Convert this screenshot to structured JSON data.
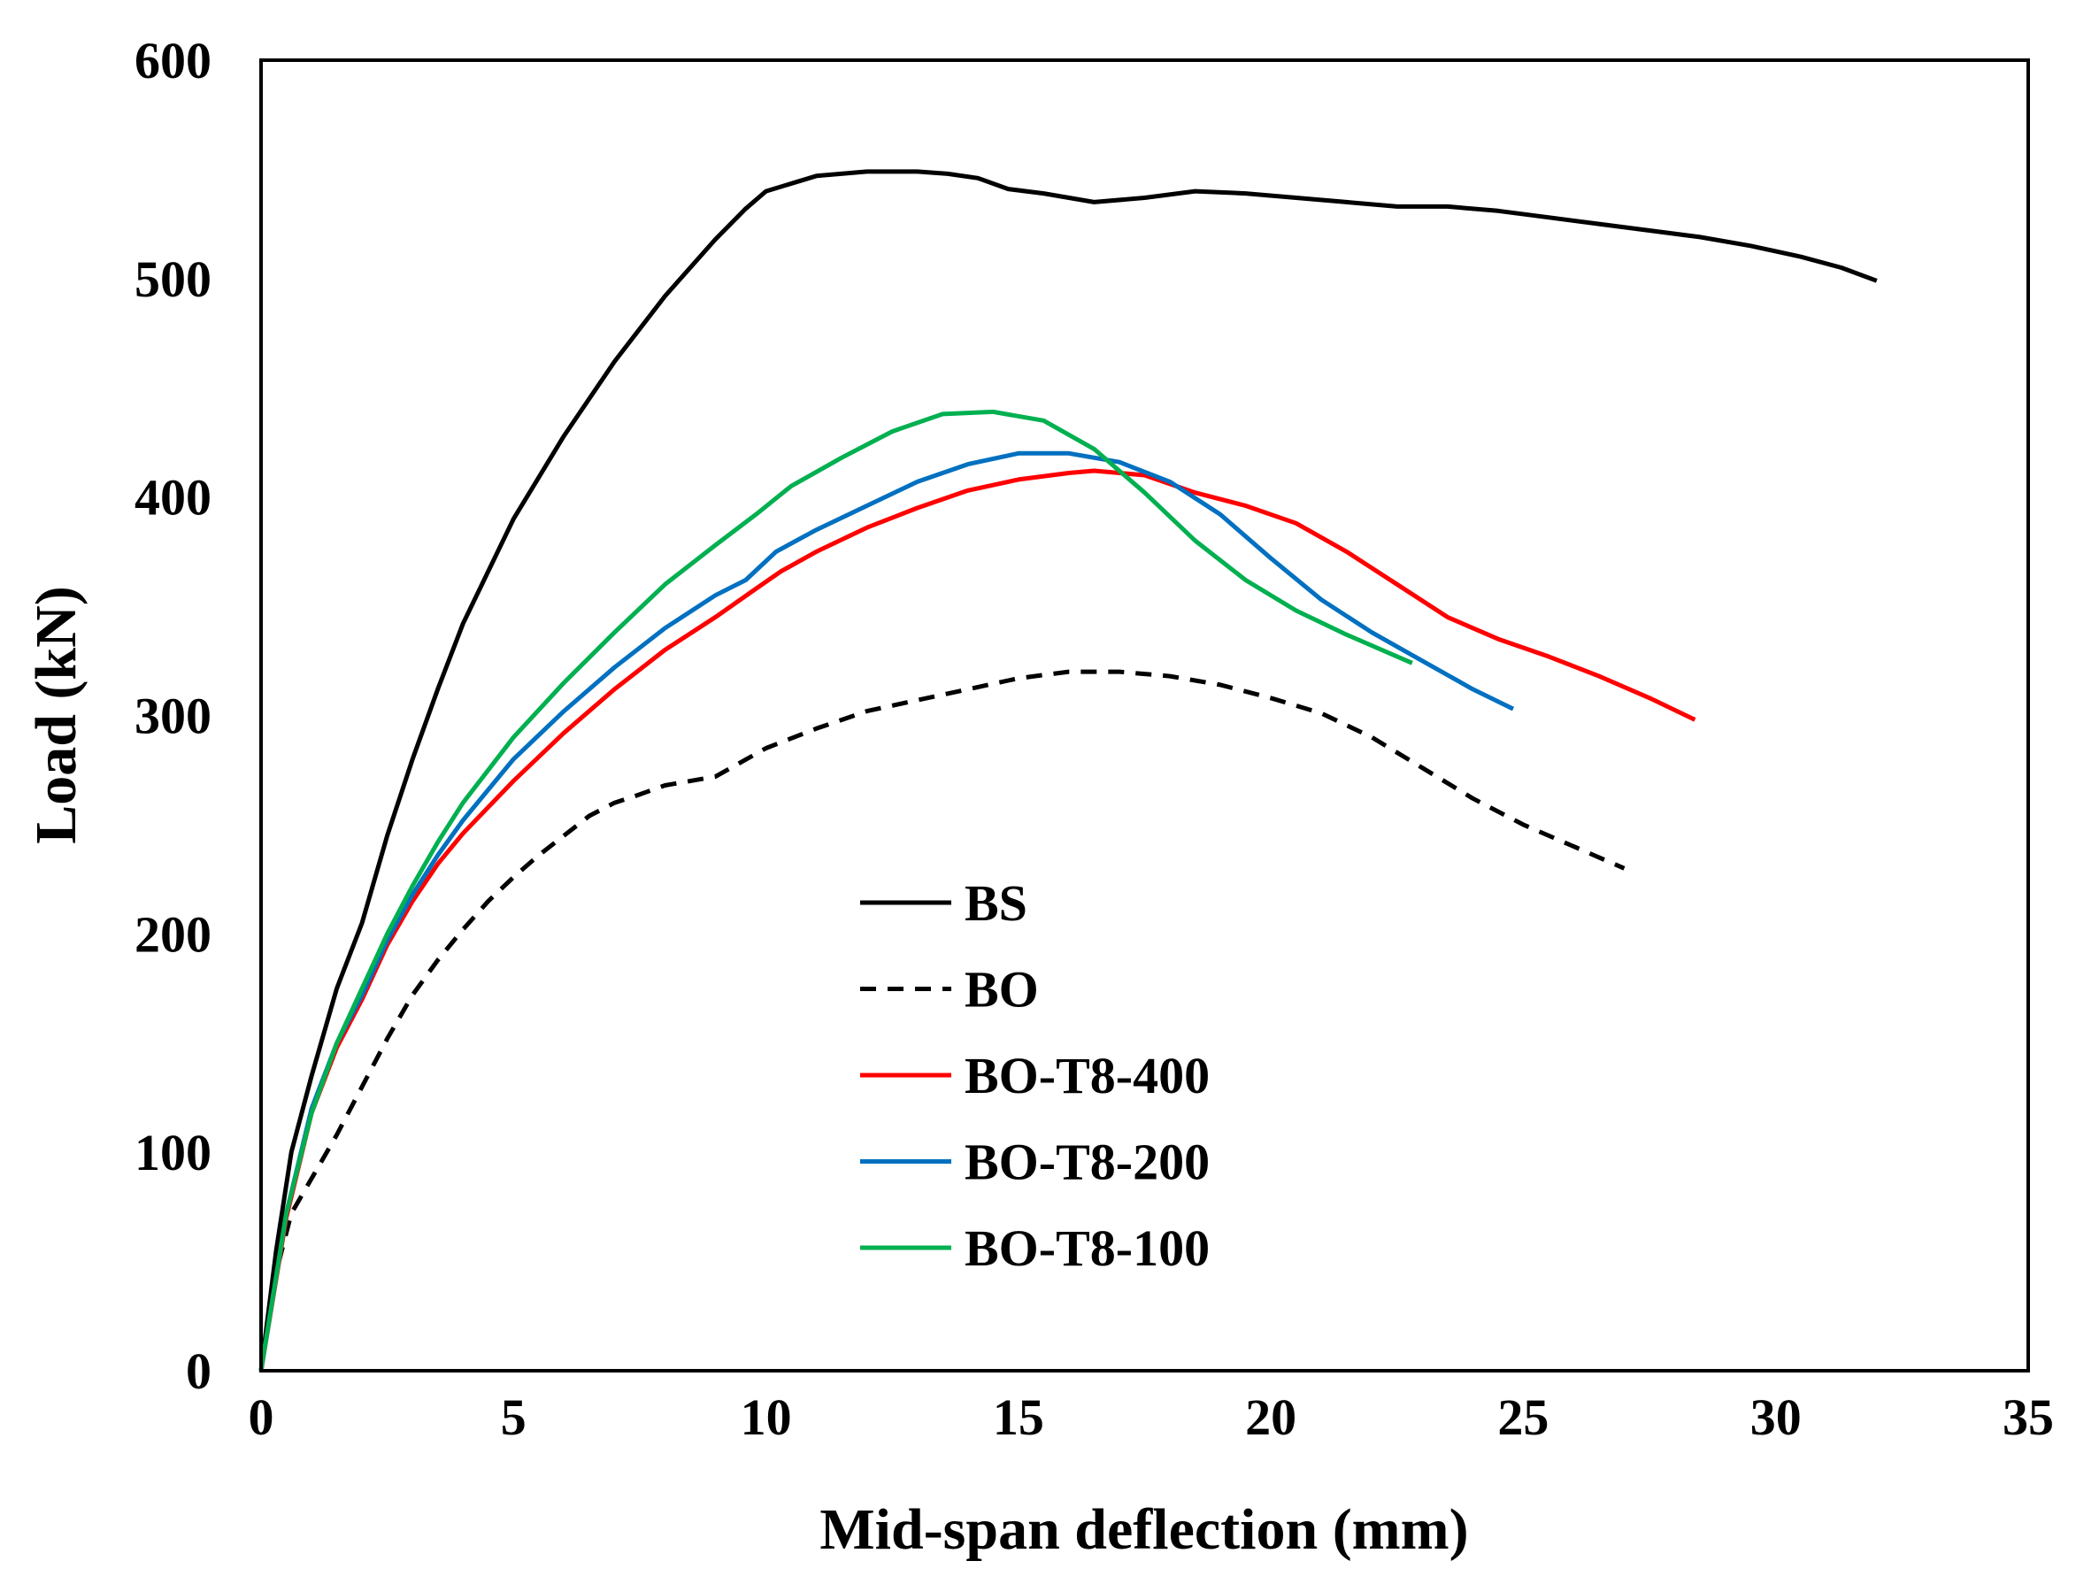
{
  "chart_data": {
    "type": "line",
    "title": "",
    "xlabel": "Mid-span deflection (mm)",
    "ylabel": "Load (kN)",
    "xlim": [
      0,
      35
    ],
    "ylim": [
      0,
      600
    ],
    "xticks": [
      "0",
      "5",
      "10",
      "15",
      "20",
      "25",
      "30",
      "35"
    ],
    "yticks": [
      "0",
      "100",
      "200",
      "300",
      "400",
      "500",
      "600"
    ],
    "grid": false,
    "legend_position": "center-left",
    "series": [
      {
        "name": "BS",
        "color": "#000000",
        "dash": "solid",
        "points": [
          [
            0,
            0
          ],
          [
            0.3,
            55
          ],
          [
            0.6,
            100
          ],
          [
            1,
            135
          ],
          [
            1.5,
            175
          ],
          [
            2,
            205
          ],
          [
            2.5,
            245
          ],
          [
            3,
            280
          ],
          [
            3.5,
            312
          ],
          [
            4,
            342
          ],
          [
            5,
            390
          ],
          [
            6,
            428
          ],
          [
            7,
            462
          ],
          [
            8,
            492
          ],
          [
            9,
            518
          ],
          [
            9.6,
            532
          ],
          [
            10,
            540
          ],
          [
            11,
            547
          ],
          [
            12,
            549
          ],
          [
            13,
            549
          ],
          [
            13.6,
            548
          ],
          [
            14.2,
            546
          ],
          [
            14.8,
            541
          ],
          [
            15.5,
            539
          ],
          [
            16.5,
            535
          ],
          [
            17.5,
            537
          ],
          [
            18.5,
            540
          ],
          [
            19.5,
            539
          ],
          [
            20.5,
            537
          ],
          [
            21.5,
            535
          ],
          [
            22.5,
            533
          ],
          [
            23.5,
            533
          ],
          [
            24.5,
            531
          ],
          [
            25.5,
            528
          ],
          [
            26.5,
            525
          ],
          [
            27.5,
            522
          ],
          [
            28.5,
            519
          ],
          [
            29.5,
            515
          ],
          [
            30.5,
            510
          ],
          [
            31.3,
            505
          ],
          [
            32,
            499
          ]
        ]
      },
      {
        "name": "BO",
        "color": "#000000",
        "dash": "dashed",
        "points": [
          [
            0,
            0
          ],
          [
            0.3,
            45
          ],
          [
            0.6,
            72
          ],
          [
            1,
            88
          ],
          [
            1.5,
            108
          ],
          [
            2,
            130
          ],
          [
            2.5,
            152
          ],
          [
            3,
            172
          ],
          [
            3.5,
            188
          ],
          [
            4,
            202
          ],
          [
            4.5,
            215
          ],
          [
            5,
            226
          ],
          [
            5.5,
            236
          ],
          [
            6,
            245
          ],
          [
            6.5,
            254
          ],
          [
            7,
            260
          ],
          [
            7.4,
            263
          ],
          [
            8,
            268
          ],
          [
            9,
            272
          ],
          [
            10,
            285
          ],
          [
            11,
            294
          ],
          [
            12,
            302
          ],
          [
            13,
            307
          ],
          [
            14,
            312
          ],
          [
            15,
            317
          ],
          [
            16,
            320
          ],
          [
            17,
            320
          ],
          [
            18,
            318
          ],
          [
            19,
            314
          ],
          [
            20,
            308
          ],
          [
            21,
            301
          ],
          [
            22,
            290
          ],
          [
            23,
            276
          ],
          [
            24,
            262
          ],
          [
            25,
            250
          ],
          [
            26,
            240
          ],
          [
            27,
            230
          ]
        ]
      },
      {
        "name": "BO-T8-400",
        "color": "#ff0000",
        "dash": "solid",
        "points": [
          [
            0,
            0
          ],
          [
            0.5,
            70
          ],
          [
            1,
            118
          ],
          [
            1.5,
            148
          ],
          [
            2,
            170
          ],
          [
            2.5,
            195
          ],
          [
            3,
            215
          ],
          [
            3.5,
            232
          ],
          [
            4,
            246
          ],
          [
            5,
            270
          ],
          [
            6,
            292
          ],
          [
            7,
            312
          ],
          [
            8,
            330
          ],
          [
            9,
            345
          ],
          [
            9.8,
            358
          ],
          [
            10.3,
            366
          ],
          [
            11,
            375
          ],
          [
            12,
            386
          ],
          [
            13,
            395
          ],
          [
            14,
            403
          ],
          [
            15,
            408
          ],
          [
            16,
            411
          ],
          [
            16.5,
            412
          ],
          [
            17.5,
            410
          ],
          [
            18.5,
            402
          ],
          [
            19.5,
            396
          ],
          [
            20.5,
            388
          ],
          [
            21.5,
            375
          ],
          [
            22.5,
            360
          ],
          [
            23.5,
            345
          ],
          [
            24.5,
            335
          ],
          [
            25.5,
            327
          ],
          [
            26.5,
            318
          ],
          [
            27.5,
            308
          ],
          [
            28.4,
            298
          ]
        ]
      },
      {
        "name": "BO-T8-200",
        "color": "#0070c0",
        "dash": "solid",
        "points": [
          [
            0,
            0
          ],
          [
            0.5,
            72
          ],
          [
            1,
            120
          ],
          [
            1.5,
            150
          ],
          [
            2,
            172
          ],
          [
            2.5,
            197
          ],
          [
            3,
            218
          ],
          [
            3.5,
            236
          ],
          [
            4,
            252
          ],
          [
            5,
            280
          ],
          [
            6,
            302
          ],
          [
            7,
            322
          ],
          [
            8,
            340
          ],
          [
            9,
            355
          ],
          [
            9.6,
            362
          ],
          [
            10.2,
            375
          ],
          [
            11,
            385
          ],
          [
            12,
            396
          ],
          [
            13,
            407
          ],
          [
            14,
            415
          ],
          [
            15,
            420
          ],
          [
            16,
            420
          ],
          [
            17,
            416
          ],
          [
            18,
            407
          ],
          [
            19,
            392
          ],
          [
            20,
            372
          ],
          [
            21,
            353
          ],
          [
            22,
            338
          ],
          [
            23,
            325
          ],
          [
            24,
            312
          ],
          [
            24.8,
            303
          ]
        ]
      },
      {
        "name": "BO-T8-100",
        "color": "#00b050",
        "dash": "solid",
        "points": [
          [
            0,
            0
          ],
          [
            0.5,
            72
          ],
          [
            1,
            118
          ],
          [
            1.5,
            150
          ],
          [
            2,
            175
          ],
          [
            2.5,
            200
          ],
          [
            3,
            222
          ],
          [
            3.5,
            242
          ],
          [
            4,
            260
          ],
          [
            5,
            290
          ],
          [
            6,
            315
          ],
          [
            7,
            338
          ],
          [
            8,
            360
          ],
          [
            9,
            378
          ],
          [
            9.8,
            392
          ],
          [
            10.5,
            405
          ],
          [
            11.5,
            418
          ],
          [
            12.5,
            430
          ],
          [
            13.5,
            438
          ],
          [
            14.5,
            439
          ],
          [
            15.5,
            435
          ],
          [
            16.5,
            422
          ],
          [
            17.5,
            402
          ],
          [
            18.5,
            380
          ],
          [
            19.5,
            362
          ],
          [
            20.5,
            348
          ],
          [
            21.5,
            337
          ],
          [
            22.5,
            327
          ],
          [
            22.8,
            324
          ]
        ]
      }
    ]
  }
}
